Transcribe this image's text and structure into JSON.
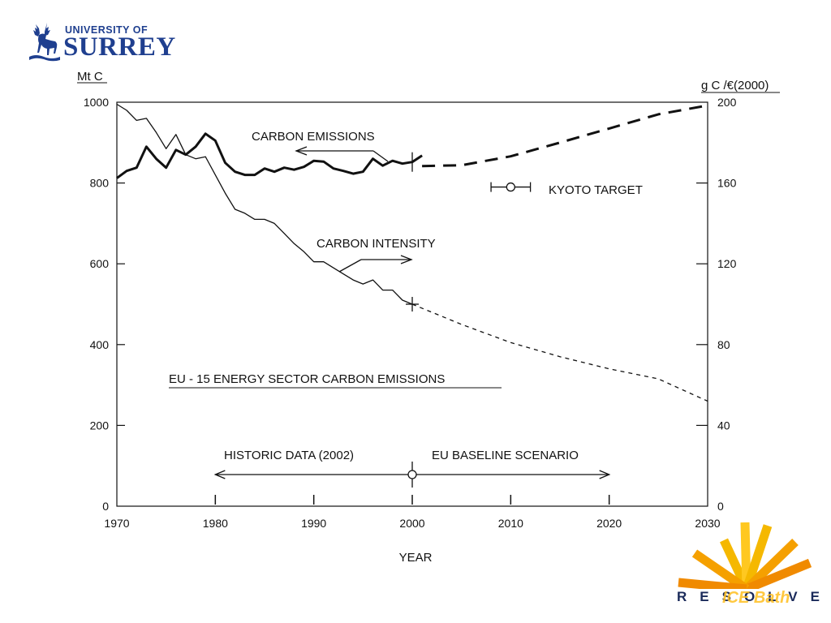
{
  "logos": {
    "surrey": {
      "top_line": "UNIVERSITY OF",
      "name": "SURREY"
    },
    "resolve": {
      "word": "RESOLVE",
      "watermark": "ICE Bath"
    }
  },
  "colors": {
    "surrey_blue": "#1f3f8f",
    "resolve_orange": "#f08a00",
    "resolve_yellow": "#ffc820",
    "ink": "#111111"
  },
  "chart_data": {
    "type": "line",
    "title": "EU - 15  ENERGY  SECTOR  CARBON  EMISSIONS",
    "xlabel": "YEAR",
    "ylabel_left": "Mt C",
    "ylabel_right": "g C /€(2000)",
    "xlim": [
      1970,
      2030
    ],
    "ylim_left": [
      0,
      1000
    ],
    "ylim_right": [
      0,
      200
    ],
    "x_ticks": [
      "1970",
      "1980",
      "1990",
      "2000",
      "2010",
      "2020",
      "2030"
    ],
    "y_ticks_left": [
      "0",
      "200",
      "400",
      "600",
      "800",
      "1000"
    ],
    "y_ticks_right": [
      "0",
      "40",
      "80",
      "120",
      "160",
      "200"
    ],
    "grid": false,
    "legend": "none",
    "series": [
      {
        "name": "CARBON  EMISSIONS",
        "axis": "left",
        "style": "thick-solid",
        "x": [
          1970,
          1971,
          1972,
          1973,
          1974,
          1975,
          1976,
          1977,
          1978,
          1979,
          1980,
          1981,
          1982,
          1983,
          1984,
          1985,
          1986,
          1987,
          1988,
          1989,
          1990,
          1991,
          1992,
          1993,
          1994,
          1995,
          1996,
          1997,
          1998,
          1999,
          2000,
          2001
        ],
        "y": [
          812,
          830,
          838,
          890,
          860,
          838,
          882,
          870,
          890,
          922,
          905,
          850,
          828,
          820,
          820,
          836,
          828,
          838,
          833,
          840,
          855,
          853,
          836,
          830,
          823,
          828,
          860,
          843,
          855,
          848,
          852,
          868
        ]
      },
      {
        "name": "CARBON  EMISSIONS projection",
        "axis": "left",
        "style": "thick-dashed",
        "x": [
          2001,
          2005,
          2010,
          2015,
          2020,
          2025,
          2030
        ],
        "y": [
          842,
          844,
          866,
          900,
          935,
          970,
          992
        ]
      },
      {
        "name": "CARBON  INTENSITY",
        "axis": "right",
        "style": "thin-solid",
        "x": [
          1970,
          1971,
          1972,
          1973,
          1974,
          1975,
          1976,
          1977,
          1978,
          1979,
          1980,
          1981,
          1982,
          1983,
          1984,
          1985,
          1986,
          1987,
          1988,
          1989,
          1990,
          1991,
          1992,
          1993,
          1994,
          1995,
          1996,
          1997,
          1998,
          1999,
          2000
        ],
        "y": [
          199,
          196,
          191,
          192,
          185,
          177,
          184,
          174,
          172,
          173,
          164,
          155,
          147,
          145,
          142,
          142,
          140,
          135,
          130,
          126,
          121,
          121,
          118,
          115,
          112,
          110,
          112,
          107,
          107,
          102,
          100
        ]
      },
      {
        "name": "CARBON  INTENSITY projection",
        "axis": "right",
        "style": "thin-dashed",
        "x": [
          2000,
          2005,
          2010,
          2015,
          2020,
          2025,
          2030
        ],
        "y": [
          100,
          90,
          81,
          74,
          68,
          63,
          52
        ]
      }
    ],
    "annotations": {
      "emissions_label": "CARBON  EMISSIONS",
      "intensity_label": "CARBON  INTENSITY",
      "kyoto_label": "KYOTO  TARGET",
      "historic_label": "HISTORIC  DATA  (2002)",
      "baseline_label": "EU  BASELINE  SCENARIO"
    },
    "kyoto_target": {
      "x": 2010,
      "x_range": [
        2008,
        2012
      ],
      "y": 790,
      "axis": "left"
    },
    "timeline": {
      "from": 1980,
      "to": 2020,
      "split": 2000,
      "ticks": [
        1980,
        1990,
        2000,
        2010,
        2020
      ]
    }
  }
}
